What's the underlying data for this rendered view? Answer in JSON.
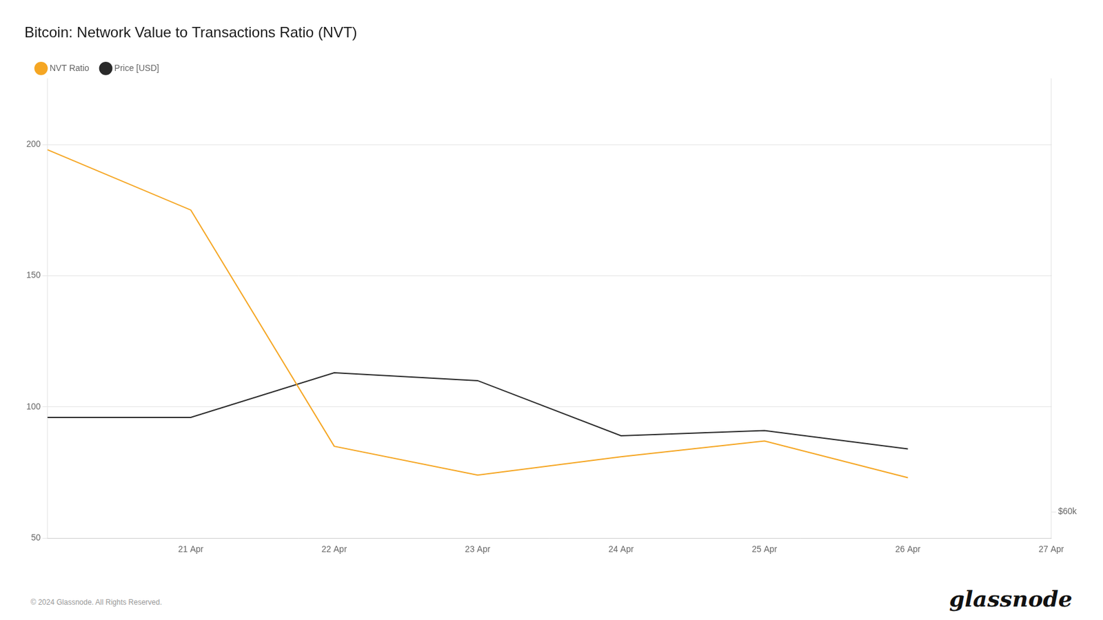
{
  "chart_data": {
    "type": "line",
    "title": "Bitcoin: Network Value to Transactions Ratio (NVT)",
    "categories": [
      null,
      "21 Apr",
      "22 Apr",
      "23 Apr",
      "24 Apr",
      "25 Apr",
      "26 Apr",
      "27 Apr"
    ],
    "series": [
      {
        "name": "NVT Ratio",
        "color": "#f5a623",
        "values": [
          198,
          175,
          85,
          74,
          81,
          87,
          73,
          null
        ]
      },
      {
        "name": "Price [USD]",
        "color": "#2a2a2a",
        "values": [
          96,
          96,
          113,
          110,
          89,
          91,
          84,
          null
        ]
      }
    ],
    "ylim": [
      50,
      225
    ],
    "yticks": [
      50,
      100,
      150,
      200
    ],
    "y2lim": [
      50,
      225
    ],
    "y2ticks": [
      {
        "value": 60,
        "label": "$60k"
      }
    ],
    "grid": "y",
    "legend": "upper left",
    "annotations": [
      "© 2024 Glassnode. All Rights Reserved.",
      "glassnode"
    ]
  }
}
